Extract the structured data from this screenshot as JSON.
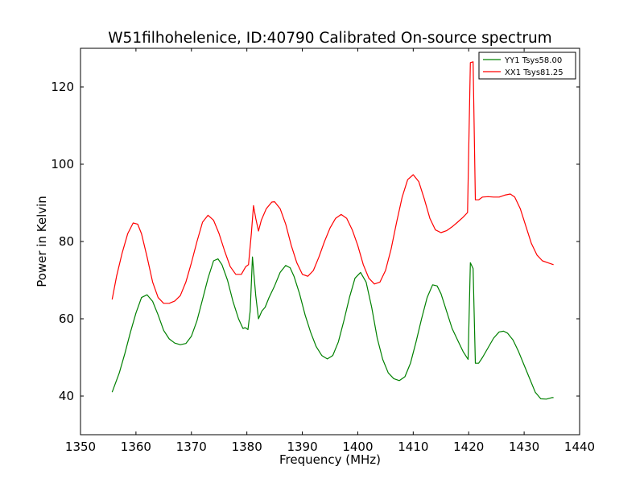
{
  "chart_data": {
    "type": "line",
    "title": "W51filhohelenice, ID:40790 Calibrated On-source spectrum",
    "xlabel": "Frequency (MHz)",
    "ylabel": "Power in Kelvin",
    "xlim": [
      1350,
      1440
    ],
    "ylim": [
      30,
      130
    ],
    "xticks": [
      1350,
      1360,
      1370,
      1380,
      1390,
      1400,
      1410,
      1420,
      1430,
      1440
    ],
    "yticks": [
      40,
      60,
      80,
      100,
      120
    ],
    "grid": false,
    "legend_position": "top-right",
    "series": [
      {
        "name": "YY1 Tsys58.00",
        "color": "#008000",
        "points": [
          [
            1355.7,
            41
          ],
          [
            1357,
            46
          ],
          [
            1358,
            51
          ],
          [
            1359,
            56.5
          ],
          [
            1360,
            61.5
          ],
          [
            1361,
            65.5
          ],
          [
            1362,
            66.2
          ],
          [
            1363,
            64.5
          ],
          [
            1364,
            61
          ],
          [
            1365,
            57
          ],
          [
            1366,
            54.8
          ],
          [
            1367,
            53.7
          ],
          [
            1368,
            53.3
          ],
          [
            1369,
            53.6
          ],
          [
            1370,
            55.5
          ],
          [
            1371,
            59.5
          ],
          [
            1372,
            65
          ],
          [
            1373,
            70.5
          ],
          [
            1374,
            75
          ],
          [
            1374.8,
            75.5
          ],
          [
            1375.5,
            74
          ],
          [
            1376.5,
            70
          ],
          [
            1377.5,
            64.5
          ],
          [
            1378.5,
            60
          ],
          [
            1379.3,
            57.5
          ],
          [
            1379.7,
            57.7
          ],
          [
            1380.2,
            57.2
          ],
          [
            1380.6,
            62
          ],
          [
            1381,
            76
          ],
          [
            1381.6,
            66
          ],
          [
            1382.1,
            60
          ],
          [
            1382.7,
            62
          ],
          [
            1383.3,
            63
          ],
          [
            1384,
            65.5
          ],
          [
            1385,
            68.5
          ],
          [
            1386,
            72
          ],
          [
            1387,
            73.8
          ],
          [
            1387.8,
            73.2
          ],
          [
            1388.5,
            71
          ],
          [
            1389.5,
            66.5
          ],
          [
            1390.5,
            61
          ],
          [
            1391.5,
            56.5
          ],
          [
            1392.5,
            52.8
          ],
          [
            1393.5,
            50.5
          ],
          [
            1394.5,
            49.6
          ],
          [
            1395.5,
            50.5
          ],
          [
            1396.5,
            54
          ],
          [
            1397.5,
            59.5
          ],
          [
            1398.5,
            65.5
          ],
          [
            1399.5,
            70.5
          ],
          [
            1400.5,
            72
          ],
          [
            1401.5,
            69.5
          ],
          [
            1402.5,
            63
          ],
          [
            1403.5,
            55
          ],
          [
            1404.5,
            49.5
          ],
          [
            1405.5,
            46
          ],
          [
            1406.5,
            44.5
          ],
          [
            1407.5,
            44
          ],
          [
            1408.5,
            45
          ],
          [
            1409.5,
            48.5
          ],
          [
            1410.5,
            54
          ],
          [
            1411.5,
            60
          ],
          [
            1412.5,
            65.5
          ],
          [
            1413.5,
            68.8
          ],
          [
            1414.3,
            68.5
          ],
          [
            1415,
            66.5
          ],
          [
            1416,
            62
          ],
          [
            1417,
            57.5
          ],
          [
            1418,
            54.5
          ],
          [
            1419,
            51.5
          ],
          [
            1419.9,
            49.5
          ],
          [
            1420.3,
            74.5
          ],
          [
            1420.8,
            73
          ],
          [
            1421.2,
            48.5
          ],
          [
            1421.8,
            48.5
          ],
          [
            1422.5,
            50
          ],
          [
            1423.5,
            52.5
          ],
          [
            1424.5,
            55
          ],
          [
            1425.5,
            56.6
          ],
          [
            1426.3,
            56.8
          ],
          [
            1427,
            56.3
          ],
          [
            1428,
            54.5
          ],
          [
            1429,
            51.5
          ],
          [
            1430,
            48
          ],
          [
            1431,
            44.5
          ],
          [
            1432,
            41
          ],
          [
            1433,
            39.3
          ],
          [
            1434,
            39.2
          ],
          [
            1435,
            39.6
          ],
          [
            1435.3,
            39.6
          ]
        ]
      },
      {
        "name": "XX1 Tsys81.25",
        "color": "#ff0000",
        "points": [
          [
            1355.7,
            65
          ],
          [
            1356.5,
            71
          ],
          [
            1357.5,
            77
          ],
          [
            1358.5,
            82
          ],
          [
            1359.5,
            84.8
          ],
          [
            1360.3,
            84.5
          ],
          [
            1361,
            82
          ],
          [
            1362,
            76
          ],
          [
            1363,
            69.5
          ],
          [
            1364,
            65.5
          ],
          [
            1365,
            64
          ],
          [
            1366,
            64
          ],
          [
            1367,
            64.6
          ],
          [
            1368,
            66
          ],
          [
            1369,
            69.5
          ],
          [
            1370,
            74.5
          ],
          [
            1371,
            80
          ],
          [
            1372,
            85
          ],
          [
            1373,
            86.8
          ],
          [
            1374,
            85.5
          ],
          [
            1375,
            82
          ],
          [
            1376,
            77.5
          ],
          [
            1377,
            73.5
          ],
          [
            1378,
            71.5
          ],
          [
            1379,
            71.5
          ],
          [
            1379.8,
            73.5
          ],
          [
            1380.3,
            74
          ],
          [
            1380.8,
            82
          ],
          [
            1381.2,
            89.3
          ],
          [
            1381.6,
            86
          ],
          [
            1382.1,
            82.7
          ],
          [
            1382.6,
            85.5
          ],
          [
            1383.5,
            88.5
          ],
          [
            1384.5,
            90.2
          ],
          [
            1385,
            90.3
          ],
          [
            1386,
            88.5
          ],
          [
            1387,
            84.5
          ],
          [
            1388,
            79
          ],
          [
            1389,
            74.5
          ],
          [
            1390,
            71.5
          ],
          [
            1391,
            71
          ],
          [
            1392,
            72.5
          ],
          [
            1393,
            76
          ],
          [
            1394,
            80
          ],
          [
            1395,
            83.5
          ],
          [
            1396,
            86
          ],
          [
            1397,
            87
          ],
          [
            1398,
            86
          ],
          [
            1399,
            83
          ],
          [
            1400,
            79
          ],
          [
            1401,
            74
          ],
          [
            1402,
            70.5
          ],
          [
            1403,
            69
          ],
          [
            1404,
            69.5
          ],
          [
            1405,
            72.5
          ],
          [
            1406,
            78
          ],
          [
            1407,
            85
          ],
          [
            1408,
            91.5
          ],
          [
            1409,
            96
          ],
          [
            1410,
            97.3
          ],
          [
            1411,
            95.5
          ],
          [
            1412,
            91
          ],
          [
            1413,
            86
          ],
          [
            1414,
            83
          ],
          [
            1415,
            82.3
          ],
          [
            1416,
            82.8
          ],
          [
            1417,
            83.8
          ],
          [
            1418,
            85
          ],
          [
            1419,
            86.3
          ],
          [
            1419.8,
            87.5
          ],
          [
            1420.3,
            126.3
          ],
          [
            1420.8,
            126.5
          ],
          [
            1421.2,
            90.8
          ],
          [
            1421.8,
            90.8
          ],
          [
            1422.5,
            91.5
          ],
          [
            1423.5,
            91.6
          ],
          [
            1424.5,
            91.5
          ],
          [
            1425.5,
            91.5
          ],
          [
            1426.5,
            92
          ],
          [
            1427.5,
            92.3
          ],
          [
            1428.3,
            91.5
          ],
          [
            1429.3,
            88.5
          ],
          [
            1430.3,
            84
          ],
          [
            1431.3,
            79.5
          ],
          [
            1432.3,
            76.5
          ],
          [
            1433.3,
            75
          ],
          [
            1434.3,
            74.5
          ],
          [
            1435.3,
            74
          ]
        ]
      }
    ]
  }
}
